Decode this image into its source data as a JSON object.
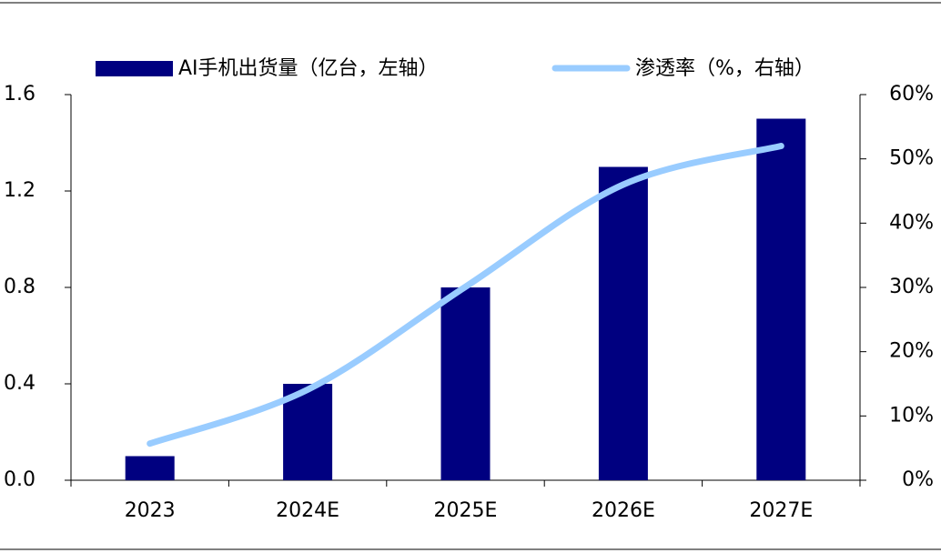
{
  "chart_data": {
    "type": "bar",
    "categories": [
      "2023",
      "2024E",
      "2025E",
      "2026E",
      "2027E"
    ],
    "series": [
      {
        "name": "AI手机出货量（亿台，左轴）",
        "color": "#000080",
        "type": "bar",
        "values": [
          0.1,
          0.4,
          0.8,
          1.3,
          1.5
        ]
      },
      {
        "name": "渗透率（%，右轴）",
        "color": "#99ccff",
        "type": "line",
        "axis": "y2",
        "values": [
          5.7,
          14.1,
          30.1,
          46,
          52
        ]
      }
    ],
    "ylim": [
      0,
      1.6
    ],
    "yticks": [
      {
        "value": 0,
        "label": "0.0"
      },
      0.4,
      0.8,
      1.2,
      1.6
    ],
    "y2lim": [
      0,
      60
    ],
    "y2ticks": [
      {
        "value": 0,
        "label": "0%"
      },
      {
        "value": 10,
        "label": "10%"
      },
      {
        "value": 20,
        "label": "20%"
      },
      {
        "value": 30,
        "label": "30%"
      },
      {
        "value": 40,
        "label": "40%"
      },
      {
        "value": 50,
        "label": "50%"
      },
      {
        "value": 60,
        "label": "60%"
      }
    ],
    "legend": "top"
  }
}
